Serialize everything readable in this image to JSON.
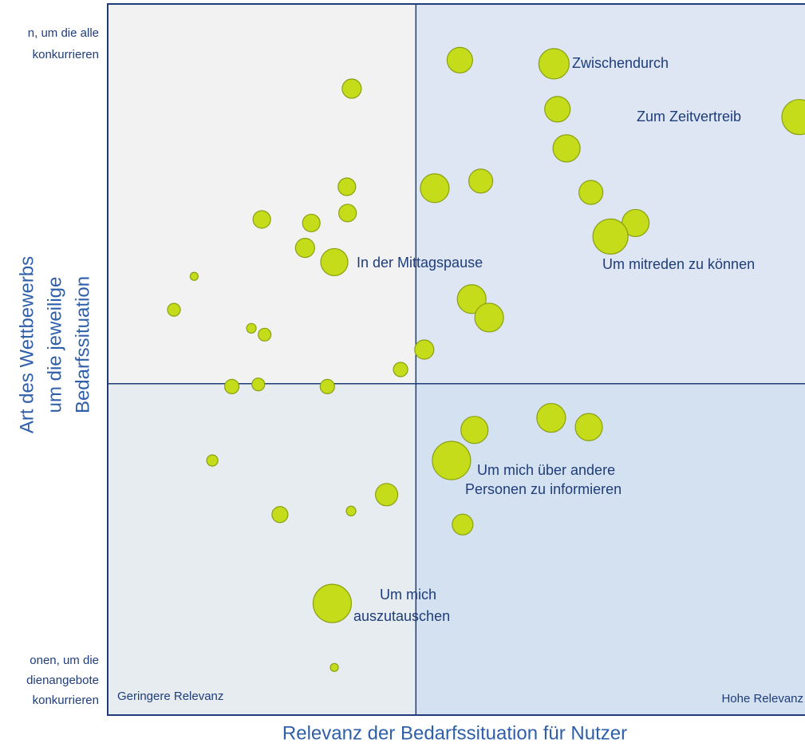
{
  "chart_data": {
    "type": "bubble",
    "xlabel": "Relevanz der Bedarfssituation für Nutzer",
    "ylabel": [
      "Art des Wettbewerbs",
      "um die jeweilige",
      "Bedarfssituation"
    ],
    "left_labels_top": [
      "n, um die alle",
      "konkurrieren"
    ],
    "left_labels_bottom": [
      "onen, um die",
      "dienangebote",
      "konkurrieren"
    ],
    "corner_labels": [
      "Geringere Relevanz",
      "Hohe Relevanz"
    ],
    "annotations": [
      "Zwischendurch",
      "Zum Zeitvertreib",
      "In der Mittagspause",
      "Um mitreden zu können",
      "Um mich über andere",
      "Personen zu informieren",
      "Um mich",
      "auszutauschen"
    ],
    "xlim": [
      0,
      100
    ],
    "ylim": [
      0,
      100
    ],
    "x_divider": 44.2,
    "y_divider": 46.6,
    "color": "#c5dc1a",
    "x": [
      50.5,
      64.0,
      35.0,
      64.5,
      99.2,
      65.8,
      46.9,
      53.5,
      34.3,
      69.3,
      34.4,
      22.1,
      29.2,
      75.7,
      72.1,
      28.3,
      32.5,
      12.4,
      52.2,
      54.7,
      9.5,
      20.6,
      22.5,
      45.4,
      42.0,
      17.8,
      21.6,
      31.5,
      63.6,
      69.0,
      52.6,
      48.3,
      49.3,
      15.0,
      40.0,
      24.7,
      34.9,
      50.9,
      32.2,
      32.5
    ],
    "y": [
      92.1,
      91.6,
      88.1,
      85.2,
      84.1,
      79.7,
      74.1,
      75.1,
      74.3,
      73.5,
      70.6,
      69.7,
      69.2,
      69.2,
      67.3,
      65.7,
      63.7,
      61.7,
      58.5,
      55.9,
      57.0,
      54.4,
      53.5,
      51.4,
      48.6,
      46.2,
      46.5,
      46.2,
      41.8,
      40.5,
      40.1,
      37.5,
      35.8,
      35.8,
      31.0,
      28.2,
      28.7,
      26.8,
      15.7,
      6.7
    ],
    "size": [
      16,
      19,
      12,
      16,
      22,
      17,
      18,
      15,
      11,
      15,
      11,
      11,
      11,
      17,
      22,
      12,
      17,
      5,
      18,
      18,
      8,
      6,
      8,
      12,
      9,
      9,
      8,
      9,
      18,
      17,
      17,
      6,
      24,
      7,
      14,
      10,
      6,
      13,
      24,
      5
    ]
  }
}
